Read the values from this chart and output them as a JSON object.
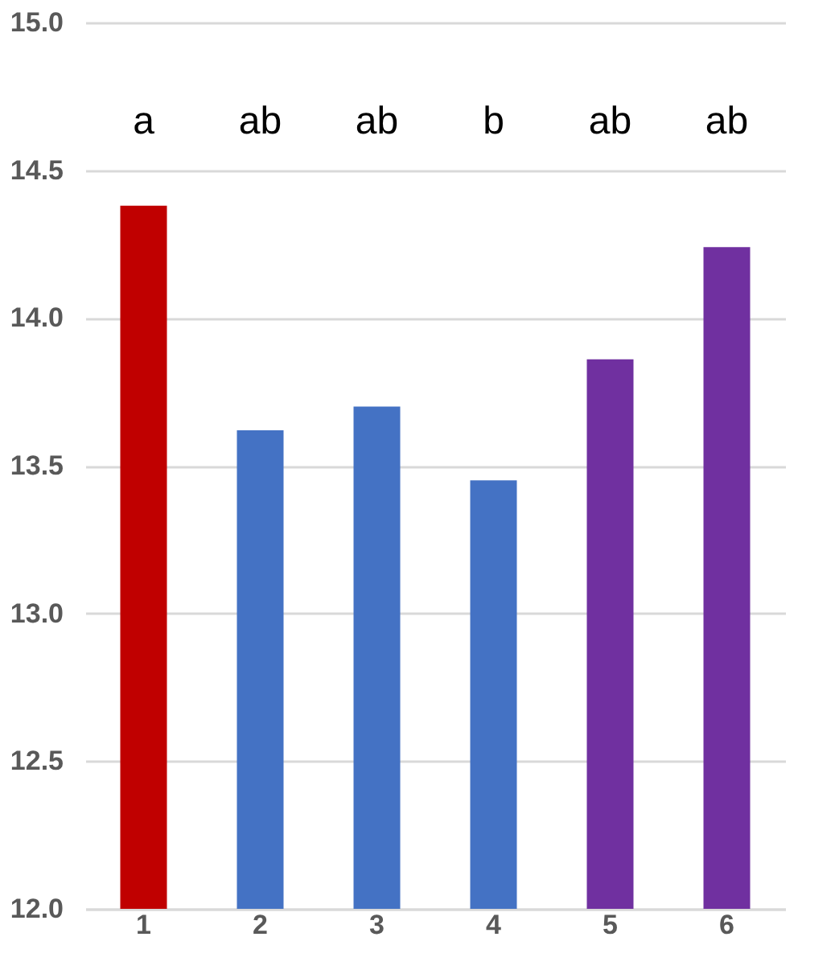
{
  "chart_data": {
    "type": "bar",
    "categories": [
      "1",
      "2",
      "3",
      "4",
      "5",
      "6"
    ],
    "values": [
      14.38,
      13.62,
      13.7,
      13.45,
      13.86,
      14.24
    ],
    "colors": [
      "#c00000",
      "#4472c4",
      "#4472c4",
      "#4472c4",
      "#7030a0",
      "#7030a0"
    ],
    "ylim": [
      12,
      15
    ],
    "yticks": [
      {
        "value": 12,
        "label": "12.0"
      },
      12.5,
      {
        "value": 13,
        "label": "13.0"
      },
      13.5,
      {
        "value": 14,
        "label": "14.0"
      },
      14.5,
      {
        "value": 15,
        "label": "15.0"
      }
    ],
    "grid": "y",
    "annotations": [
      "a",
      "ab",
      "ab",
      "b",
      "ab",
      "ab"
    ]
  }
}
